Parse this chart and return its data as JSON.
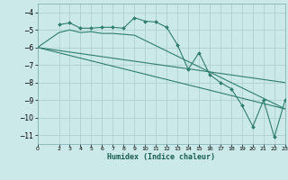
{
  "title": "",
  "xlabel": "Humidex (Indice chaleur)",
  "background_color": "#cce9e9",
  "grid_color": "#aacccc",
  "line_color": "#2e7d6e",
  "xlim": [
    0,
    23
  ],
  "ylim": [
    -11.5,
    -3.5
  ],
  "yticks": [
    -4,
    -5,
    -6,
    -7,
    -8,
    -9,
    -10,
    -11
  ],
  "xticks": [
    0,
    2,
    3,
    4,
    5,
    6,
    7,
    8,
    9,
    10,
    11,
    12,
    13,
    14,
    15,
    16,
    17,
    18,
    19,
    20,
    21,
    22,
    23
  ],
  "line1_x": [
    2,
    3,
    4,
    5,
    6,
    7,
    8,
    9,
    10,
    11,
    12,
    13,
    14,
    15,
    16,
    17,
    18,
    19,
    20,
    21,
    22,
    23
  ],
  "line1_y": [
    -4.7,
    -4.6,
    -4.9,
    -4.9,
    -4.85,
    -4.85,
    -4.9,
    -4.3,
    -4.5,
    -4.55,
    -4.85,
    -5.85,
    -7.25,
    -6.3,
    -7.55,
    -8.0,
    -8.35,
    -9.3,
    -10.5,
    -9.0,
    -11.1,
    -9.0
  ],
  "line2_x": [
    0,
    2,
    3,
    4,
    5,
    6,
    7,
    8,
    9,
    10,
    11,
    12,
    13,
    14,
    15,
    16,
    17,
    18,
    19,
    20,
    21,
    22,
    23
  ],
  "line2_y": [
    -6.0,
    -5.15,
    -5.0,
    -5.15,
    -5.1,
    -5.2,
    -5.2,
    -5.25,
    -5.3,
    -5.6,
    -5.9,
    -6.2,
    -6.5,
    -6.8,
    -7.1,
    -7.4,
    -7.7,
    -8.0,
    -8.3,
    -8.6,
    -8.9,
    -9.2,
    -9.5
  ],
  "line3_x": [
    0,
    23
  ],
  "line3_y": [
    -6.0,
    -8.0
  ],
  "line4_x": [
    0,
    23
  ],
  "line4_y": [
    -6.0,
    -9.5
  ]
}
